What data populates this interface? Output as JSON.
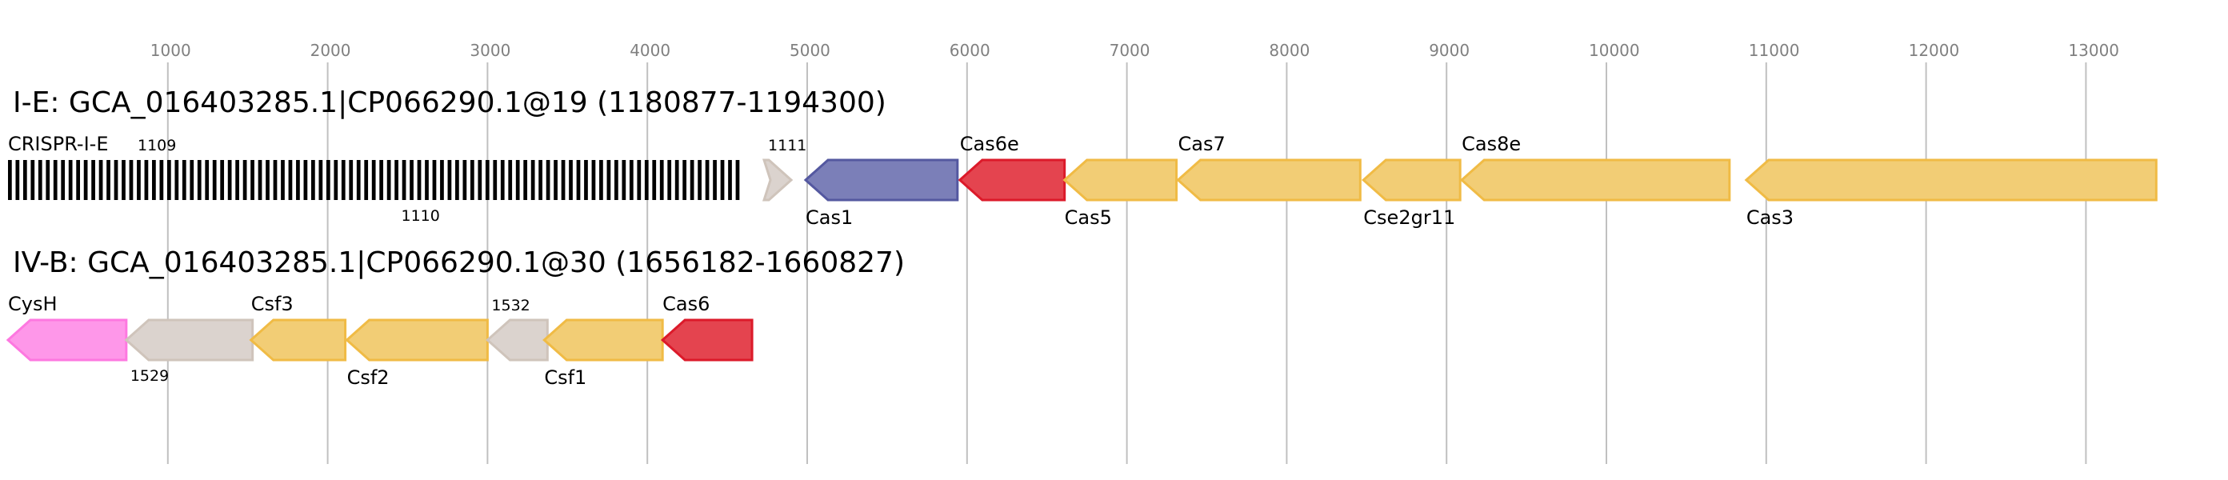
{
  "axis": {
    "ticks": [
      1000,
      2000,
      3000,
      4000,
      5000,
      6000,
      7000,
      8000,
      9000,
      10000,
      11000,
      12000,
      13000
    ]
  },
  "colors": {
    "blue": [
      "#7b7fb8",
      "#5458a0"
    ],
    "red": [
      "#e4444f",
      "#dc1a2a"
    ],
    "yellow": [
      "#f2cd75",
      "#f0bb45"
    ],
    "grey": [
      "#dbd3ce",
      "#cfc4bb"
    ],
    "pink": [
      "#fe97e9",
      "#fd78e0"
    ]
  },
  "tracks": [
    {
      "title": "I-E: GCA_016403285.1|CP066290.1@19 (1180877-1194300)",
      "crispr": {
        "label": "CRISPR-I-E",
        "start": 0,
        "end": 4600,
        "id_label": "1109"
      },
      "genes": [
        {
          "label": "1111",
          "start": 4730,
          "end": 4900,
          "strand": "+",
          "color": "grey",
          "pos": "above",
          "small": true
        },
        {
          "label": "Cas1",
          "start": 4990,
          "end": 5940,
          "strand": "-",
          "color": "blue",
          "pos": "below"
        },
        {
          "label": "Cas6e",
          "start": 5955,
          "end": 6610,
          "strand": "-",
          "color": "red",
          "pos": "above"
        },
        {
          "label": "Cas5",
          "start": 6610,
          "end": 7310,
          "strand": "-",
          "color": "yellow",
          "pos": "below"
        },
        {
          "label": "Cas7",
          "start": 7320,
          "end": 8460,
          "strand": "-",
          "color": "yellow",
          "pos": "above"
        },
        {
          "label": "Cse2gr11",
          "start": 8480,
          "end": 9085,
          "strand": "-",
          "color": "yellow",
          "pos": "below"
        },
        {
          "label": "Cas8e",
          "start": 9095,
          "end": 10770,
          "strand": "-",
          "color": "yellow",
          "pos": "above"
        },
        {
          "label": "Cas3",
          "start": 10875,
          "end": 13440,
          "strand": "-",
          "color": "yellow",
          "pos": "below"
        }
      ],
      "extra_labels": [
        {
          "label": "1110",
          "at": 2500,
          "pos": "below"
        }
      ]
    },
    {
      "title": "IV-B: GCA_016403285.1|CP066290.1@30 (1656182-1660827)",
      "genes": [
        {
          "label": "CysH",
          "start": 0,
          "end": 740,
          "strand": "-",
          "color": "pink",
          "pos": "above"
        },
        {
          "label": "1529",
          "start": 740,
          "end": 1530,
          "strand": "-",
          "color": "grey",
          "pos": "below",
          "small": true
        },
        {
          "label": "Csf3",
          "start": 1520,
          "end": 2110,
          "strand": "-",
          "color": "yellow",
          "pos": "above"
        },
        {
          "label": "Csf2",
          "start": 2120,
          "end": 3000,
          "strand": "-",
          "color": "yellow",
          "pos": "below"
        },
        {
          "label": "1532",
          "start": 3000,
          "end": 3375,
          "strand": "-",
          "color": "grey",
          "pos": "above",
          "small": true
        },
        {
          "label": "Csf1",
          "start": 3355,
          "end": 4095,
          "strand": "-",
          "color": "yellow",
          "pos": "below"
        },
        {
          "label": "Cas6",
          "start": 4095,
          "end": 4655,
          "strand": "-",
          "color": "red",
          "pos": "above"
        }
      ]
    }
  ]
}
